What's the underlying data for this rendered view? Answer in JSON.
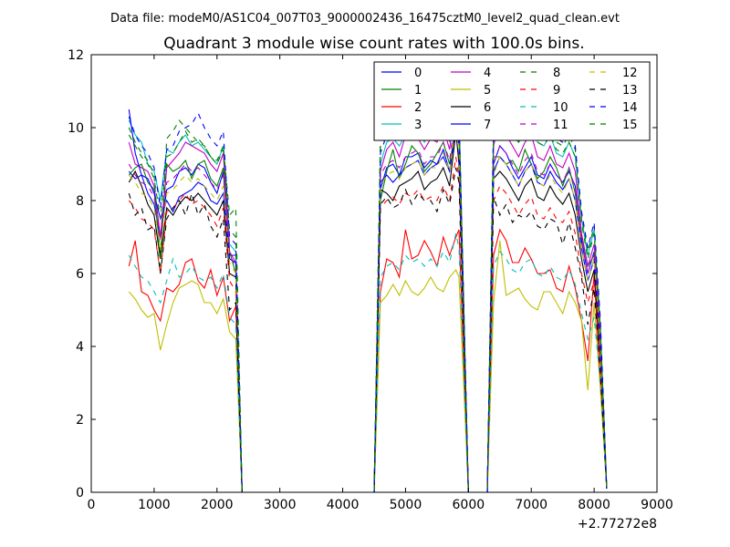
{
  "header": {
    "data_file_label": "Data file: modeM0/AS1C04_007T03_9000002436_16475cztM0_level2_quad_clean.evt"
  },
  "chart_data": {
    "type": "line",
    "title": "Quadrant 3 module wise count rates with 100.0s bins.",
    "xlabel": "",
    "ylabel": "",
    "x_offset_label": "+2.77272e8",
    "xlim": [
      0,
      9000
    ],
    "ylim": [
      0,
      12
    ],
    "xticks": [
      0,
      1000,
      2000,
      3000,
      4000,
      5000,
      6000,
      7000,
      8000,
      9000
    ],
    "yticks": [
      0,
      2,
      4,
      6,
      8,
      10,
      12
    ],
    "legend_position": "top-right",
    "legend_columns": 4,
    "x": [
      600,
      700,
      800,
      900,
      1000,
      1100,
      1200,
      1300,
      1400,
      1500,
      1600,
      1700,
      1800,
      1900,
      2000,
      2100,
      2200,
      2300,
      2400,
      2450,
      4500,
      4600,
      4700,
      4800,
      4900,
      5000,
      5100,
      5200,
      5300,
      5400,
      5500,
      5600,
      5700,
      5800,
      5850,
      6000,
      6300,
      6400,
      6500,
      6600,
      6700,
      6800,
      6900,
      7000,
      7100,
      7200,
      7300,
      7400,
      7500,
      7600,
      7700,
      7800,
      7900,
      8000,
      8100,
      8200
    ],
    "series": [
      {
        "name": "0",
        "color": "#0000ff",
        "dash": "solid",
        "values": [
          8.8,
          8.6,
          8.7,
          8.2,
          7.9,
          7.0,
          8.3,
          8.4,
          8.8,
          8.9,
          8.7,
          9.0,
          8.9,
          8.5,
          8.2,
          8.8,
          6.5,
          6.5,
          0.0,
          0.0,
          0.0,
          8.3,
          8.9,
          9.0,
          8.7,
          9.2,
          9.2,
          9.3,
          8.9,
          9.1,
          9.0,
          9.4,
          8.8,
          10.0,
          9.8,
          0.0,
          0.0,
          9.0,
          9.5,
          9.3,
          8.9,
          8.6,
          8.9,
          9.2,
          8.7,
          8.6,
          9.0,
          8.7,
          8.5,
          8.8,
          8.4,
          6.9,
          6.0,
          6.6,
          4.0,
          0.1
        ]
      },
      {
        "name": "1",
        "color": "#008000",
        "dash": "solid",
        "values": [
          8.7,
          8.9,
          9.0,
          8.5,
          8.3,
          6.5,
          9.0,
          8.8,
          8.9,
          9.1,
          8.6,
          9.0,
          9.1,
          8.6,
          8.4,
          8.9,
          6.6,
          6.0,
          0.0,
          0.0,
          0.0,
          8.0,
          8.8,
          9.4,
          8.6,
          9.0,
          9.5,
          9.3,
          8.8,
          9.0,
          9.3,
          9.6,
          9.0,
          10.0,
          9.6,
          0.0,
          0.0,
          9.2,
          9.2,
          9.0,
          9.1,
          8.8,
          9.4,
          9.0,
          8.6,
          8.8,
          9.2,
          8.9,
          8.4,
          8.9,
          8.2,
          7.0,
          6.2,
          6.5,
          3.8,
          0.1
        ]
      },
      {
        "name": "2",
        "color": "#ff0000",
        "dash": "solid",
        "values": [
          6.2,
          6.9,
          5.5,
          5.4,
          5.0,
          4.7,
          5.6,
          5.5,
          5.7,
          6.3,
          6.4,
          5.8,
          5.6,
          6.1,
          5.4,
          5.9,
          4.7,
          5.1,
          0.0,
          0.0,
          0.0,
          5.5,
          6.4,
          6.3,
          5.9,
          7.2,
          6.4,
          6.5,
          6.9,
          6.6,
          6.2,
          7.0,
          6.5,
          7.0,
          7.2,
          0.0,
          0.0,
          6.5,
          7.2,
          6.9,
          6.3,
          6.3,
          6.7,
          6.4,
          6.0,
          6.0,
          6.1,
          5.6,
          5.5,
          6.2,
          5.6,
          4.7,
          3.6,
          6.0,
          3.0,
          0.1
        ]
      },
      {
        "name": "3",
        "color": "#00bfbf",
        "dash": "solid",
        "values": [
          10.2,
          9.8,
          9.6,
          9.0,
          8.8,
          8.0,
          9.4,
          9.3,
          9.6,
          9.8,
          9.5,
          9.6,
          9.4,
          9.2,
          9.0,
          9.5,
          6.8,
          6.6,
          0.0,
          0.0,
          0.0,
          9.0,
          9.6,
          9.7,
          9.5,
          9.8,
          10.0,
          10.1,
          9.6,
          10.0,
          9.8,
          10.3,
          9.6,
          11.4,
          10.5,
          0.0,
          0.0,
          9.8,
          10.6,
          10.1,
          9.8,
          9.6,
          9.9,
          10.2,
          9.6,
          9.5,
          9.8,
          9.3,
          9.2,
          9.6,
          9.2,
          7.5,
          6.5,
          7.2,
          4.5,
          0.1
        ]
      },
      {
        "name": "4",
        "color": "#bf00bf",
        "dash": "solid",
        "values": [
          9.6,
          9.0,
          8.9,
          8.8,
          8.4,
          7.0,
          8.9,
          9.1,
          9.3,
          9.6,
          9.5,
          9.4,
          9.3,
          9.0,
          8.8,
          9.3,
          6.6,
          6.3,
          0.0,
          0.0,
          0.0,
          8.8,
          9.4,
          9.6,
          9.2,
          9.8,
          9.8,
          9.7,
          9.4,
          9.7,
          9.6,
          10.0,
          9.4,
          10.8,
          10.2,
          0.0,
          0.0,
          9.5,
          10.2,
          9.8,
          9.5,
          9.2,
          9.6,
          9.8,
          9.2,
          9.1,
          9.5,
          9.0,
          8.9,
          9.3,
          8.8,
          7.1,
          6.2,
          6.8,
          4.3,
          0.1
        ]
      },
      {
        "name": "5",
        "color": "#bfbf00",
        "dash": "solid",
        "values": [
          5.5,
          5.3,
          5.0,
          4.8,
          4.9,
          3.9,
          4.6,
          5.2,
          5.6,
          5.7,
          5.8,
          5.7,
          5.2,
          5.2,
          4.9,
          5.3,
          4.4,
          4.2,
          0.0,
          0.0,
          0.0,
          5.2,
          5.4,
          5.7,
          5.4,
          5.8,
          5.5,
          5.4,
          5.6,
          5.9,
          5.6,
          5.5,
          5.9,
          6.1,
          5.9,
          0.0,
          0.0,
          5.2,
          6.9,
          5.4,
          5.5,
          5.6,
          5.3,
          5.1,
          5.0,
          5.5,
          5.5,
          5.2,
          4.9,
          5.5,
          5.2,
          4.7,
          2.8,
          5.2,
          2.8,
          0.1
        ]
      },
      {
        "name": "6",
        "color": "#000000",
        "dash": "solid",
        "values": [
          8.5,
          8.8,
          8.4,
          7.9,
          7.6,
          6.4,
          7.8,
          7.6,
          7.9,
          8.1,
          8.0,
          8.2,
          8.0,
          7.8,
          7.6,
          8.0,
          6.0,
          5.9,
          0.0,
          0.0,
          0.0,
          8.3,
          8.2,
          8.0,
          8.4,
          8.5,
          8.6,
          8.8,
          8.3,
          8.5,
          8.6,
          8.9,
          8.4,
          9.9,
          9.0,
          0.0,
          0.0,
          8.6,
          8.8,
          8.6,
          8.3,
          8.0,
          8.4,
          8.6,
          8.1,
          8.0,
          8.4,
          8.1,
          7.9,
          8.2,
          7.6,
          6.4,
          5.5,
          6.1,
          3.7,
          0.1
        ]
      },
      {
        "name": "7",
        "color": "#0000ff",
        "dash": "solid",
        "values": [
          10.5,
          9.3,
          8.7,
          8.6,
          8.2,
          7.5,
          8.0,
          7.7,
          8.1,
          8.2,
          8.3,
          8.5,
          8.4,
          8.0,
          7.9,
          8.2,
          6.4,
          6.3,
          0.0,
          0.0,
          0.0,
          8.5,
          8.7,
          8.5,
          8.7,
          8.9,
          9.0,
          9.1,
          8.7,
          8.9,
          9.0,
          9.2,
          8.8,
          10.1,
          9.5,
          0.0,
          0.0,
          8.8,
          9.2,
          9.0,
          8.7,
          8.4,
          8.8,
          9.0,
          8.5,
          8.4,
          8.8,
          8.5,
          8.3,
          8.6,
          8.0,
          6.7,
          5.8,
          6.4,
          3.9,
          0.1
        ]
      },
      {
        "name": "8",
        "color": "#008000",
        "dash": "dashed",
        "values": [
          10.0,
          9.6,
          9.3,
          9.1,
          8.7,
          6.2,
          9.7,
          9.9,
          10.2,
          10.0,
          9.8,
          9.6,
          9.5,
          9.2,
          9.1,
          9.5,
          7.6,
          7.8,
          0.0,
          0.0,
          0.0,
          9.8,
          10.0,
          10.1,
          9.9,
          10.2,
          10.3,
          10.4,
          10.0,
          10.2,
          10.2,
          10.6,
          10.0,
          10.9,
          10.4,
          0.0,
          0.0,
          10.2,
          10.8,
          10.3,
          10.0,
          9.8,
          10.1,
          10.3,
          9.8,
          9.7,
          10.0,
          9.6,
          9.5,
          9.8,
          9.4,
          7.6,
          6.6,
          7.3,
          4.6,
          0.1
        ]
      },
      {
        "name": "9",
        "color": "#ff0000",
        "dash": "dashed",
        "values": [
          8.0,
          7.8,
          7.5,
          7.4,
          7.2,
          6.0,
          7.7,
          7.8,
          8.0,
          8.2,
          7.9,
          8.0,
          7.8,
          7.6,
          7.3,
          7.8,
          5.8,
          5.5,
          0.0,
          0.0,
          0.0,
          7.8,
          8.0,
          8.1,
          7.9,
          8.2,
          8.1,
          8.3,
          8.0,
          8.1,
          8.0,
          8.4,
          8.0,
          9.2,
          8.6,
          0.0,
          0.0,
          8.0,
          8.4,
          8.2,
          7.9,
          7.6,
          7.9,
          8.1,
          7.6,
          7.5,
          7.8,
          7.5,
          7.4,
          7.7,
          7.1,
          6.0,
          5.2,
          5.8,
          3.5,
          0.1
        ]
      },
      {
        "name": "10",
        "color": "#00bfbf",
        "dash": "dashed",
        "values": [
          6.5,
          6.2,
          5.9,
          5.8,
          5.5,
          5.2,
          5.8,
          6.4,
          5.9,
          6.0,
          6.2,
          5.9,
          5.8,
          5.9,
          5.6,
          6.0,
          4.8,
          4.6,
          0.0,
          0.0,
          0.0,
          5.9,
          6.2,
          6.3,
          6.1,
          6.5,
          6.3,
          6.4,
          6.2,
          6.4,
          6.2,
          6.6,
          6.3,
          7.1,
          6.7,
          0.0,
          0.0,
          6.2,
          6.6,
          6.4,
          6.1,
          6.0,
          6.3,
          6.4,
          6.0,
          5.9,
          6.2,
          5.9,
          5.8,
          6.1,
          5.7,
          4.9,
          4.2,
          4.8,
          3.0,
          0.1
        ]
      },
      {
        "name": "11",
        "color": "#bf00bf",
        "dash": "dashed",
        "values": [
          9.0,
          8.7,
          8.5,
          8.4,
          8.1,
          6.9,
          8.5,
          8.6,
          8.8,
          9.0,
          8.8,
          8.9,
          8.7,
          8.5,
          8.3,
          8.7,
          6.5,
          6.2,
          0.0,
          0.0,
          0.0,
          8.7,
          9.0,
          9.1,
          8.9,
          9.2,
          9.3,
          9.4,
          9.0,
          9.2,
          9.2,
          9.6,
          9.1,
          10.4,
          9.8,
          0.0,
          0.0,
          9.0,
          9.5,
          9.3,
          9.0,
          8.7,
          9.1,
          9.3,
          8.8,
          8.7,
          9.0,
          8.7,
          8.5,
          8.9,
          8.3,
          6.9,
          6.0,
          6.6,
          4.1,
          0.1
        ]
      },
      {
        "name": "12",
        "color": "#bfbf00",
        "dash": "dashed",
        "values": [
          8.7,
          8.5,
          8.2,
          8.1,
          7.8,
          6.6,
          8.2,
          8.3,
          8.5,
          8.7,
          8.5,
          8.6,
          8.4,
          8.2,
          8.0,
          8.4,
          6.3,
          6.0,
          0.0,
          0.0,
          0.0,
          8.4,
          8.7,
          8.8,
          8.6,
          8.9,
          9.0,
          9.1,
          8.7,
          8.9,
          8.9,
          9.3,
          8.8,
          10.1,
          9.5,
          0.0,
          0.0,
          8.7,
          9.2,
          9.0,
          8.7,
          8.4,
          8.8,
          9.0,
          8.5,
          8.4,
          8.7,
          8.4,
          8.2,
          8.6,
          8.0,
          6.7,
          5.8,
          6.4,
          4.0,
          0.1
        ]
      },
      {
        "name": "13",
        "color": "#000000",
        "dash": "dashed",
        "values": [
          8.2,
          7.6,
          7.8,
          7.2,
          7.3,
          6.0,
          7.5,
          7.8,
          8.0,
          7.6,
          8.2,
          7.6,
          7.9,
          7.3,
          7.0,
          7.5,
          5.0,
          5.2,
          0.0,
          0.0,
          0.0,
          7.9,
          8.1,
          7.8,
          7.9,
          8.3,
          7.9,
          8.2,
          8.0,
          8.0,
          7.7,
          8.3,
          7.9,
          8.9,
          8.5,
          0.0,
          0.0,
          8.1,
          7.6,
          7.9,
          7.4,
          7.6,
          7.5,
          7.7,
          7.3,
          7.2,
          7.5,
          7.4,
          6.8,
          7.4,
          6.7,
          5.9,
          4.6,
          5.6,
          3.2,
          0.1
        ]
      },
      {
        "name": "14",
        "color": "#0000ff",
        "dash": "dashed",
        "values": [
          10.3,
          9.8,
          9.5,
          9.3,
          8.9,
          7.8,
          9.4,
          9.5,
          9.9,
          10.0,
          10.1,
          10.4,
          10.0,
          9.7,
          9.5,
          9.9,
          7.0,
          6.8,
          0.0,
          0.0,
          0.0,
          9.3,
          9.8,
          10.0,
          9.7,
          10.1,
          10.3,
          10.4,
          9.9,
          10.2,
          10.1,
          10.6,
          9.9,
          10.4,
          10.3,
          0.0,
          0.0,
          10.0,
          10.9,
          10.4,
          10.1,
          9.9,
          10.2,
          10.5,
          9.9,
          9.8,
          10.1,
          9.7,
          9.6,
          9.9,
          9.5,
          7.7,
          6.7,
          7.4,
          4.7,
          0.1
        ]
      },
      {
        "name": "15",
        "color": "#008000",
        "dash": "dashed",
        "values": [
          9.8,
          9.5,
          9.2,
          9.0,
          8.6,
          7.5,
          9.2,
          9.3,
          9.6,
          9.9,
          9.6,
          9.7,
          9.5,
          9.2,
          9.0,
          9.4,
          7.2,
          7.0,
          0.0,
          0.0,
          0.0,
          9.5,
          9.8,
          9.9,
          9.7,
          10.0,
          10.1,
          10.2,
          9.8,
          10.0,
          10.0,
          10.4,
          9.8,
          10.7,
          10.2,
          0.0,
          0.0,
          9.9,
          10.5,
          10.1,
          9.8,
          9.6,
          9.9,
          10.1,
          9.6,
          9.5,
          9.8,
          9.4,
          9.3,
          9.6,
          9.2,
          7.4,
          6.4,
          7.1,
          4.4,
          0.1
        ]
      }
    ]
  }
}
